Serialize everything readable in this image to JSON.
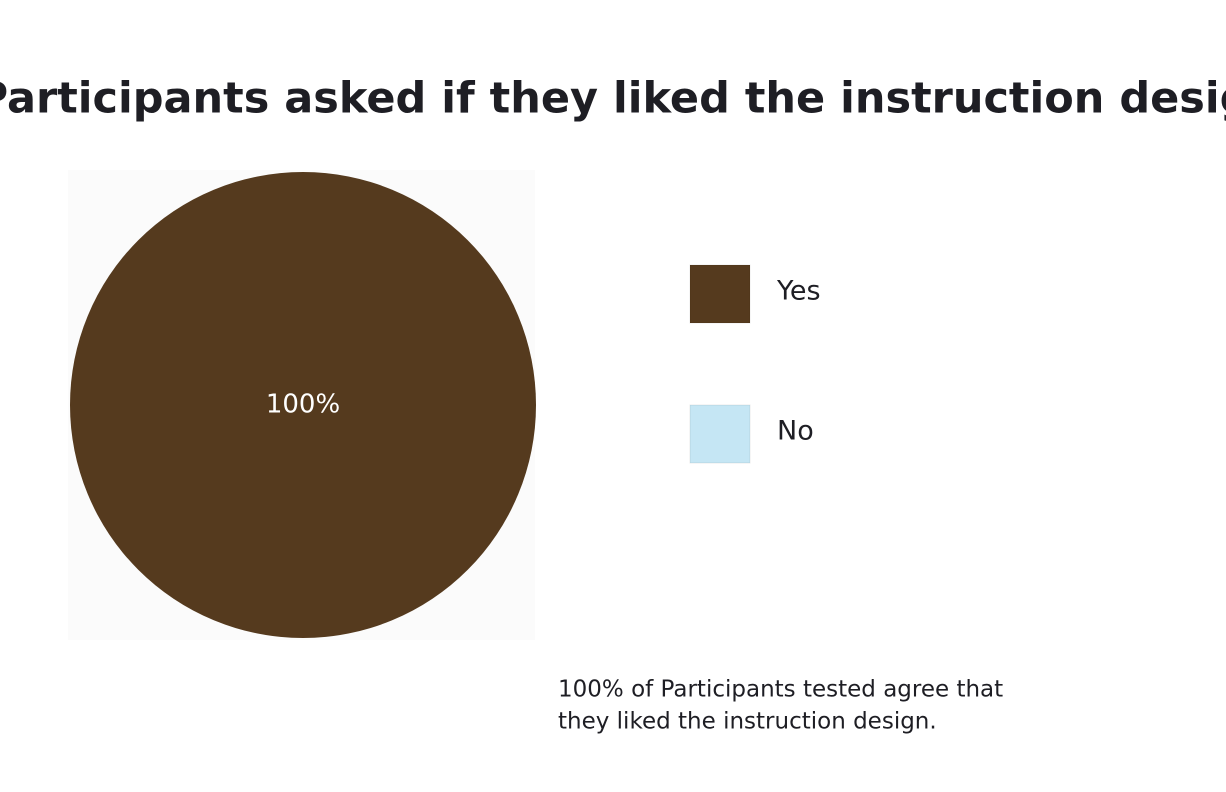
{
  "chart_data": {
    "type": "pie",
    "title": "Participants asked if they liked the instruction design.",
    "categories": [
      "Yes",
      "No"
    ],
    "values": [
      100,
      0
    ],
    "value_labels": [
      "100%",
      null
    ],
    "colors": [
      "#553a1e",
      "#c5e6f4"
    ],
    "annotation": [
      "100% of Participants tested agree that",
      "they liked the instruction design."
    ]
  }
}
